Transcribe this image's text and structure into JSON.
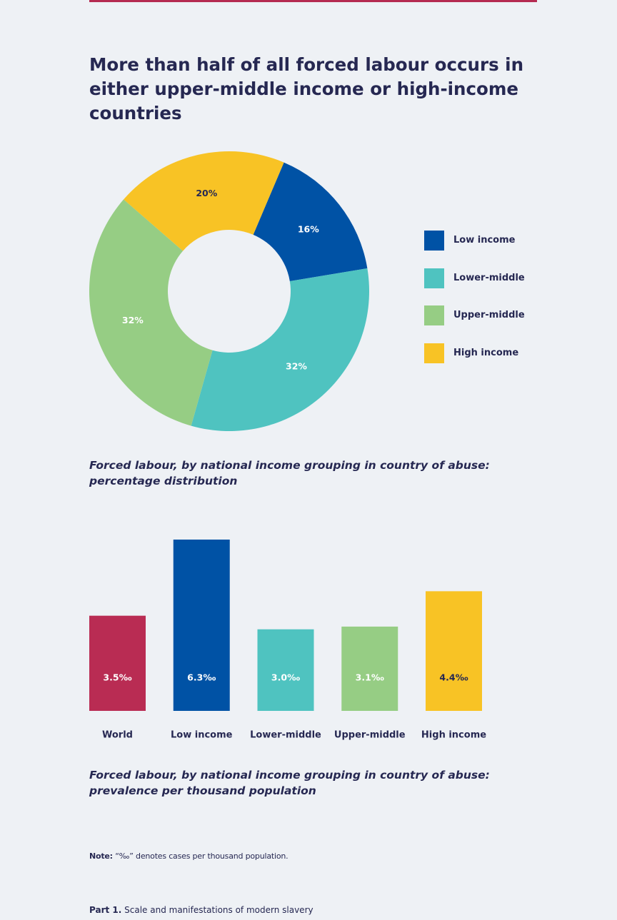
{
  "headline": "More than half of all forced labour occurs in either upper-middle income or high-income countries",
  "colors": {
    "low_income": "#0052a5",
    "lower_middle": "#4fc3c0",
    "upper_middle": "#96cd84",
    "high_income": "#f8c325",
    "world": "#b92c53",
    "text": "#262852",
    "background": "#eef1f5"
  },
  "chart_data": [
    {
      "type": "pie",
      "donut": true,
      "title": "Forced labour, by national income grouping in country of abuse: percentage distribution",
      "slices": [
        {
          "name": "Low income",
          "value": 16,
          "label": "16%",
          "color": "#0052a5",
          "label_color": "#ffffff"
        },
        {
          "name": "Lower-middle",
          "value": 32,
          "label": "32%",
          "color": "#4fc3c0",
          "label_color": "#ffffff"
        },
        {
          "name": "Upper-middle",
          "value": 32,
          "label": "32%",
          "color": "#96cd84",
          "label_color": "#ffffff"
        },
        {
          "name": "High income",
          "value": 20,
          "label": "20%",
          "color": "#f8c325",
          "label_color": "#262852"
        }
      ],
      "legend_position": "right"
    },
    {
      "type": "bar",
      "title": "Forced labour, by national income grouping in country of abuse: prevalence per thousand population",
      "categories": [
        "World",
        "Low income",
        "Lower-middle",
        "Upper-middle",
        "High income"
      ],
      "values": [
        3.5,
        6.3,
        3.0,
        3.1,
        4.4
      ],
      "value_labels": [
        "3.5‰",
        "6.3‰",
        "3.0‰",
        "3.1‰",
        "4.4‰"
      ],
      "colors": [
        "#b92c53",
        "#0052a5",
        "#4fc3c0",
        "#96cd84",
        "#f8c325"
      ],
      "label_colors": [
        "#ffffff",
        "#ffffff",
        "#ffffff",
        "#ffffff",
        "#262852"
      ],
      "ylim": [
        0,
        6.3
      ]
    }
  ],
  "captions": {
    "donut": "Forced labour, by national income grouping in country of abuse: percentage distribution",
    "bars": "Forced labour, by national income grouping in country of abuse: prevalence per thousand population"
  },
  "note": {
    "prefix": "Note:",
    "text": "“‰” denotes cases per thousand population."
  },
  "footer": {
    "part": "Part 1.",
    "text": "Scale and manifestations of modern slavery"
  }
}
